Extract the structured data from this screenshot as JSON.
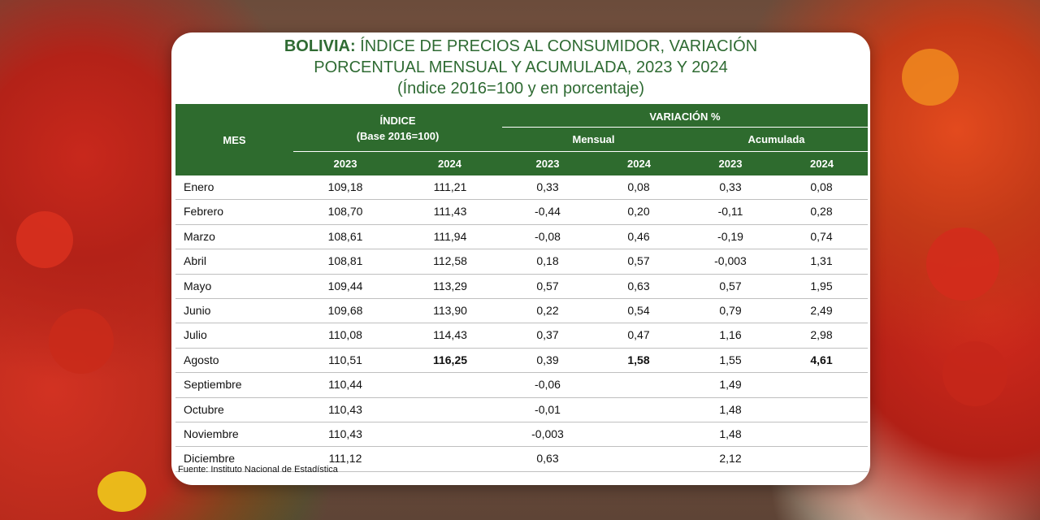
{
  "title": {
    "bold": "BOLIVIA:",
    "line1_rest": " ÍNDICE DE PRECIOS AL CONSUMIDOR, VARIACIÓN",
    "line2": "PORCENTUAL MENSUAL Y ACUMULADA, 2023 Y 2024",
    "line3": "(Índice 2016=100 y en porcentaje)"
  },
  "header": {
    "mes": "MES",
    "indice": "ÍNDICE",
    "indice_base": "(Base 2016=100)",
    "variacion": "VARIACIÓN %",
    "mensual": "Mensual",
    "acumulada": "Acumulada",
    "years": [
      "2023",
      "2024",
      "2023",
      "2024",
      "2023",
      "2024"
    ]
  },
  "rows": [
    {
      "mes": "Enero",
      "i2023": "109,18",
      "i2024": "111,21",
      "m2023": "0,33",
      "m2024": "0,08",
      "a2023": "0,33",
      "a2024": "0,08"
    },
    {
      "mes": "Febrero",
      "i2023": "108,70",
      "i2024": "111,43",
      "m2023": "-0,44",
      "m2024": "0,20",
      "a2023": "-0,11",
      "a2024": "0,28"
    },
    {
      "mes": "Marzo",
      "i2023": "108,61",
      "i2024": "111,94",
      "m2023": "-0,08",
      "m2024": "0,46",
      "a2023": "-0,19",
      "a2024": "0,74"
    },
    {
      "mes": "Abril",
      "i2023": "108,81",
      "i2024": "112,58",
      "m2023": "0,18",
      "m2024": "0,57",
      "a2023": "-0,003",
      "a2024": "1,31"
    },
    {
      "mes": "Mayo",
      "i2023": "109,44",
      "i2024": "113,29",
      "m2023": "0,57",
      "m2024": "0,63",
      "a2023": "0,57",
      "a2024": "1,95"
    },
    {
      "mes": "Junio",
      "i2023": "109,68",
      "i2024": "113,90",
      "m2023": "0,22",
      "m2024": "0,54",
      "a2023": "0,79",
      "a2024": "2,49"
    },
    {
      "mes": "Julio",
      "i2023": "110,08",
      "i2024": "114,43",
      "m2023": "0,37",
      "m2024": "0,47",
      "a2023": "1,16",
      "a2024": "2,98"
    },
    {
      "mes": "Agosto",
      "i2023": "110,51",
      "i2024": "116,25",
      "m2023": "0,39",
      "m2024": "1,58",
      "a2023": "1,55",
      "a2024": "4,61"
    },
    {
      "mes": "Septiembre",
      "i2023": "110,44",
      "i2024": "",
      "m2023": "-0,06",
      "m2024": "",
      "a2023": "1,49",
      "a2024": ""
    },
    {
      "mes": "Octubre",
      "i2023": "110,43",
      "i2024": "",
      "m2023": "-0,01",
      "m2024": "",
      "a2023": "1,48",
      "a2024": ""
    },
    {
      "mes": "Noviembre",
      "i2023": "110,43",
      "i2024": "",
      "m2023": "-0,003",
      "m2024": "",
      "a2023": "1,48",
      "a2024": ""
    },
    {
      "mes": "Diciembre",
      "i2023": "111,12",
      "i2024": "",
      "m2023": "0,63",
      "m2024": "",
      "a2023": "2,12",
      "a2024": ""
    }
  ],
  "source": "Fuente: Instituto Nacional de Estadística",
  "colors": {
    "header_green": "#2e6b2e",
    "title_green": "#2f6b33"
  }
}
